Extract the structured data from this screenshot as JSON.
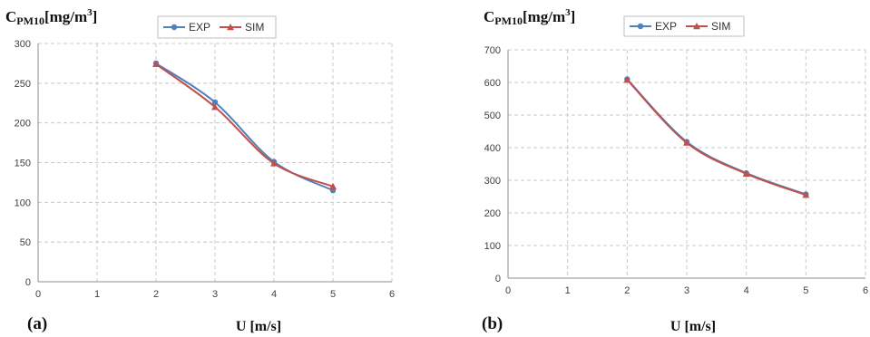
{
  "chart_data": [
    {
      "type": "line",
      "panel_label": "(a)",
      "ylabel": {
        "main": "C",
        "sub": "PM10",
        "unit": "[mg/m",
        "sup": "3",
        "close": "]"
      },
      "xlabel": "U [m/s]",
      "xlim": [
        0,
        6
      ],
      "ylim": [
        0,
        300
      ],
      "xticks": [
        0,
        1,
        2,
        3,
        4,
        5,
        6
      ],
      "yticks": [
        0,
        50,
        100,
        150,
        200,
        250,
        300
      ],
      "grid": true,
      "legend_position": "top-center",
      "series": [
        {
          "name": "EXP",
          "color": "#4F81BD",
          "marker": "circle",
          "x": [
            2,
            3,
            4,
            5
          ],
          "y": [
            275,
            226,
            151,
            115
          ]
        },
        {
          "name": "SIM",
          "color": "#C0504D",
          "marker": "triangle",
          "x": [
            2,
            3,
            4,
            5
          ],
          "y": [
            274,
            220,
            149,
            120
          ]
        }
      ]
    },
    {
      "type": "line",
      "panel_label": "(b)",
      "ylabel": {
        "main": "C",
        "sub": "PM10",
        "unit": "[mg/m",
        "sup": "3",
        "close": "]"
      },
      "xlabel": "U [m/s]",
      "xlim": [
        0,
        6
      ],
      "ylim": [
        0,
        700
      ],
      "xticks": [
        0,
        1,
        2,
        3,
        4,
        5,
        6
      ],
      "yticks": [
        0,
        100,
        200,
        300,
        400,
        500,
        600,
        700
      ],
      "grid": true,
      "legend_position": "top-center",
      "series": [
        {
          "name": "EXP",
          "color": "#4F81BD",
          "marker": "circle",
          "x": [
            2,
            3,
            4,
            5
          ],
          "y": [
            610,
            418,
            322,
            257
          ]
        },
        {
          "name": "SIM",
          "color": "#C0504D",
          "marker": "triangle",
          "x": [
            2,
            3,
            4,
            5
          ],
          "y": [
            608,
            415,
            320,
            255
          ]
        }
      ]
    }
  ]
}
